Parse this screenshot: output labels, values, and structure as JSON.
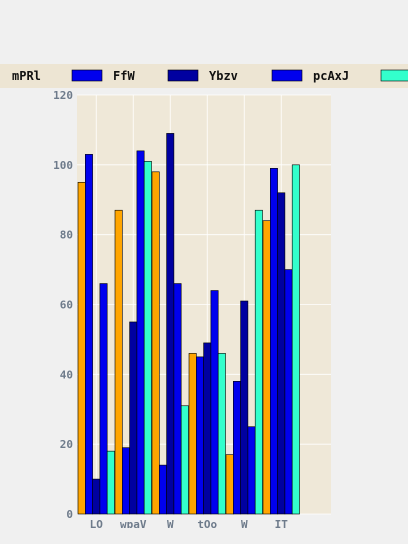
{
  "chart_data": {
    "type": "bar",
    "categories": [
      "LO",
      "wpaV",
      "W",
      "tOo",
      "W",
      "IT"
    ],
    "series": [
      {
        "name": "mPRl",
        "color": "#ffa500",
        "values": [
          95,
          87,
          98,
          46,
          17,
          84
        ]
      },
      {
        "name": "FfW",
        "color": "#0000ee",
        "values": [
          103,
          19,
          14,
          45,
          38,
          99
        ]
      },
      {
        "name": "Ybzv",
        "color": "#0000a0",
        "values": [
          10,
          55,
          109,
          49,
          61,
          92
        ]
      },
      {
        "name": "pcAxJ",
        "color": "#0000ee",
        "values": [
          66,
          104,
          66,
          64,
          25,
          70
        ]
      },
      {
        "name": "",
        "color": "#33ffcc",
        "values": [
          18,
          101,
          31,
          46,
          87,
          100
        ]
      }
    ],
    "ylim": [
      0,
      120
    ],
    "yticks": [
      0,
      20,
      40,
      60,
      80,
      100,
      120
    ],
    "grid": true,
    "legend_position": "top"
  }
}
